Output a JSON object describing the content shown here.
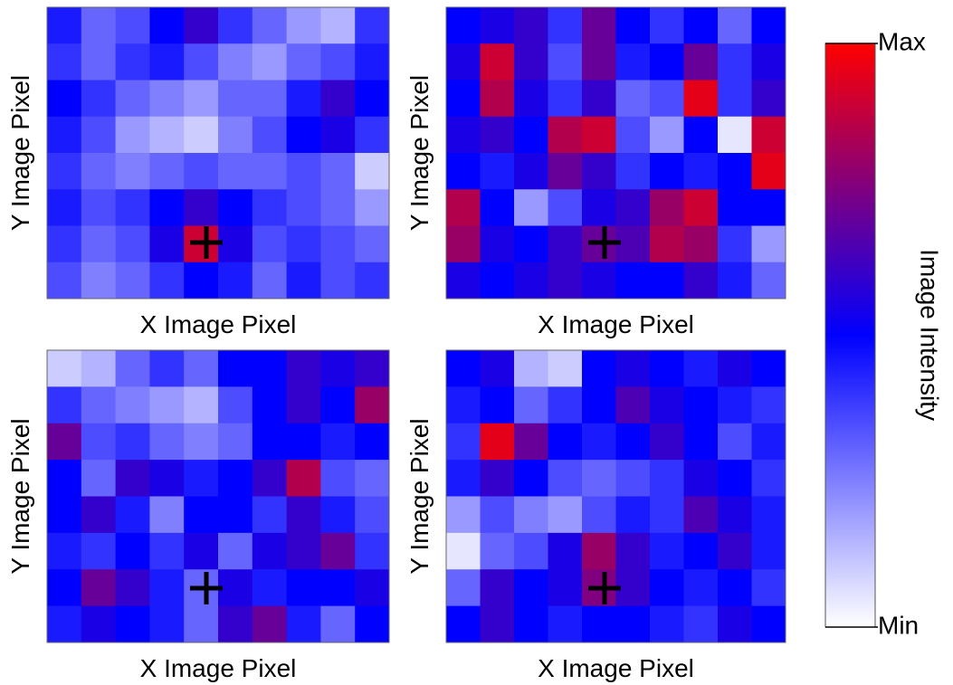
{
  "chart_data": {
    "type": "heatmap",
    "panels": [
      {
        "xlabel": "X Image Pixel",
        "ylabel": "Y Image Pixel",
        "values": [
          [
            0.45,
            0.3,
            0.35,
            0.5,
            0.6,
            0.4,
            0.3,
            0.2,
            0.15,
            0.4
          ],
          [
            0.4,
            0.3,
            0.4,
            0.45,
            0.35,
            0.25,
            0.2,
            0.3,
            0.35,
            0.45
          ],
          [
            0.5,
            0.4,
            0.3,
            0.25,
            0.2,
            0.3,
            0.3,
            0.45,
            0.6,
            0.5
          ],
          [
            0.45,
            0.35,
            0.2,
            0.15,
            0.1,
            0.25,
            0.35,
            0.5,
            0.55,
            0.4
          ],
          [
            0.4,
            0.3,
            0.25,
            0.3,
            0.35,
            0.3,
            0.3,
            0.35,
            0.3,
            0.1
          ],
          [
            0.45,
            0.35,
            0.4,
            0.5,
            0.6,
            0.5,
            0.4,
            0.35,
            0.3,
            0.2
          ],
          [
            0.4,
            0.3,
            0.35,
            0.55,
            0.9,
            0.55,
            0.35,
            0.4,
            0.35,
            0.3
          ],
          [
            0.35,
            0.25,
            0.3,
            0.4,
            0.5,
            0.45,
            0.3,
            0.45,
            0.35,
            0.4
          ]
        ]
      },
      {
        "xlabel": "X Image Pixel",
        "ylabel": "Y Image Pixel",
        "values": [
          [
            0.5,
            0.55,
            0.6,
            0.4,
            0.7,
            0.5,
            0.4,
            0.5,
            0.3,
            0.5
          ],
          [
            0.55,
            0.9,
            0.6,
            0.35,
            0.7,
            0.45,
            0.5,
            0.7,
            0.4,
            0.55
          ],
          [
            0.5,
            0.85,
            0.55,
            0.4,
            0.6,
            0.3,
            0.35,
            0.95,
            0.4,
            0.6
          ],
          [
            0.55,
            0.6,
            0.5,
            0.85,
            0.9,
            0.35,
            0.2,
            0.5,
            0.05,
            0.9
          ],
          [
            0.5,
            0.45,
            0.55,
            0.7,
            0.6,
            0.4,
            0.5,
            0.45,
            0.5,
            0.95
          ],
          [
            0.85,
            0.5,
            0.2,
            0.35,
            0.55,
            0.6,
            0.8,
            0.9,
            0.5,
            0.5
          ],
          [
            0.8,
            0.55,
            0.5,
            0.6,
            0.7,
            0.65,
            0.85,
            0.8,
            0.4,
            0.2
          ],
          [
            0.55,
            0.5,
            0.55,
            0.6,
            0.55,
            0.5,
            0.5,
            0.6,
            0.45,
            0.3
          ]
        ]
      },
      {
        "xlabel": "X Image Pixel",
        "ylabel": "Y Image Pixel",
        "values": [
          [
            0.1,
            0.15,
            0.3,
            0.4,
            0.3,
            0.5,
            0.5,
            0.6,
            0.55,
            0.6
          ],
          [
            0.4,
            0.3,
            0.25,
            0.2,
            0.15,
            0.35,
            0.5,
            0.6,
            0.5,
            0.8
          ],
          [
            0.7,
            0.35,
            0.4,
            0.3,
            0.25,
            0.3,
            0.5,
            0.5,
            0.45,
            0.5
          ],
          [
            0.5,
            0.3,
            0.6,
            0.55,
            0.45,
            0.5,
            0.6,
            0.85,
            0.35,
            0.3
          ],
          [
            0.5,
            0.6,
            0.45,
            0.25,
            0.5,
            0.5,
            0.4,
            0.6,
            0.45,
            0.35
          ],
          [
            0.45,
            0.4,
            0.5,
            0.4,
            0.55,
            0.3,
            0.55,
            0.6,
            0.7,
            0.4
          ],
          [
            0.5,
            0.7,
            0.6,
            0.45,
            0.3,
            0.55,
            0.45,
            0.5,
            0.5,
            0.55
          ],
          [
            0.45,
            0.55,
            0.5,
            0.45,
            0.3,
            0.6,
            0.7,
            0.45,
            0.3,
            0.5
          ]
        ]
      },
      {
        "xlabel": "X Image Pixel",
        "ylabel": "Y Image Pixel",
        "values": [
          [
            0.5,
            0.55,
            0.15,
            0.1,
            0.5,
            0.55,
            0.5,
            0.45,
            0.55,
            0.5
          ],
          [
            0.45,
            0.5,
            0.3,
            0.4,
            0.5,
            0.65,
            0.55,
            0.5,
            0.45,
            0.4
          ],
          [
            0.4,
            0.95,
            0.7,
            0.5,
            0.45,
            0.5,
            0.6,
            0.5,
            0.35,
            0.45
          ],
          [
            0.45,
            0.6,
            0.5,
            0.35,
            0.3,
            0.35,
            0.4,
            0.55,
            0.5,
            0.4
          ],
          [
            0.2,
            0.35,
            0.25,
            0.2,
            0.35,
            0.45,
            0.4,
            0.65,
            0.55,
            0.45
          ],
          [
            0.05,
            0.3,
            0.35,
            0.55,
            0.8,
            0.6,
            0.45,
            0.5,
            0.6,
            0.45
          ],
          [
            0.3,
            0.6,
            0.5,
            0.55,
            0.75,
            0.6,
            0.5,
            0.45,
            0.5,
            0.4
          ],
          [
            0.5,
            0.6,
            0.5,
            0.45,
            0.5,
            0.5,
            0.45,
            0.4,
            0.55,
            0.5
          ]
        ]
      }
    ],
    "colorbar": {
      "label": "Image Intensity",
      "clim": [
        0,
        1
      ],
      "ticks": [
        {
          "value": 1,
          "label": "Max"
        },
        {
          "value": 0,
          "label": "Min"
        }
      ],
      "colors": [
        "#ffffff",
        "#0000ff",
        "#ff0000"
      ]
    }
  }
}
